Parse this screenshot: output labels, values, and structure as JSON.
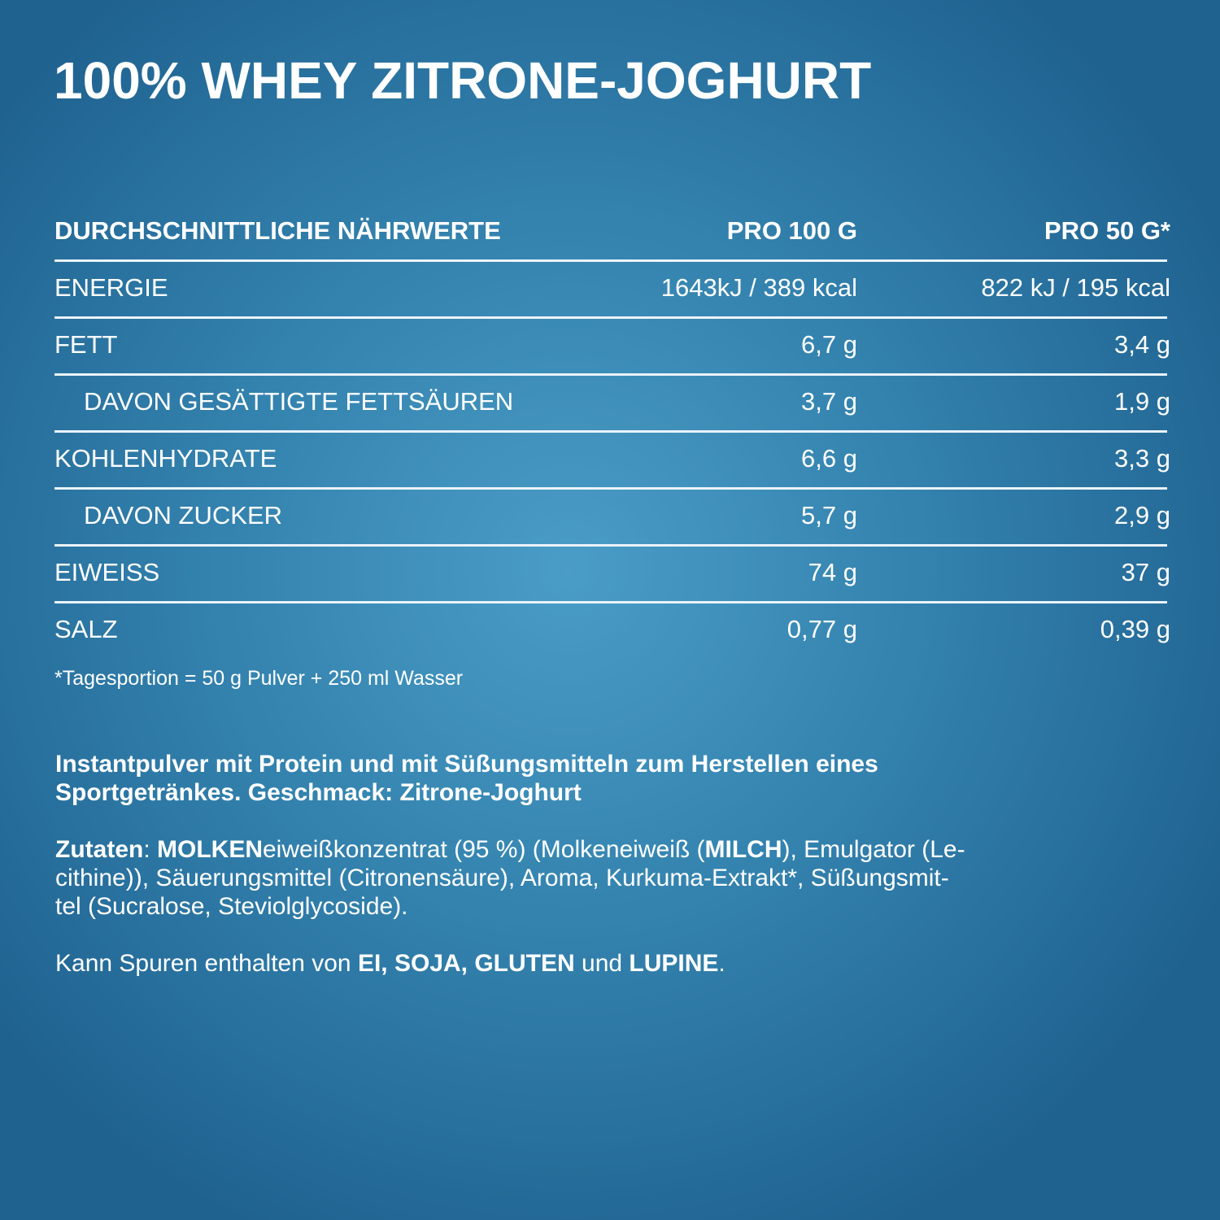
{
  "header": {
    "title": "100% WHEY ZITRONE-JOGHURT"
  },
  "table": {
    "columns": [
      "DURCHSCHNITTLICHE NÄHRWERTE",
      "PRO 100 G",
      "PRO 50 G*"
    ],
    "rows": [
      {
        "cells": [
          "ENERGIE",
          "1643kJ / 389 kcal",
          "822 kJ / 195 kcal"
        ],
        "indent": false
      },
      {
        "cells": [
          "FETT",
          "6,7 g",
          "3,4 g"
        ],
        "indent": false
      },
      {
        "cells": [
          "DAVON GESÄTTIGTE FETTSÄUREN",
          "3,7 g",
          "1,9 g"
        ],
        "indent": true
      },
      {
        "cells": [
          "KOHLENHYDRATE",
          "6,6 g",
          "3,3 g"
        ],
        "indent": false
      },
      {
        "cells": [
          "DAVON ZUCKER",
          "5,7 g",
          "2,9 g"
        ],
        "indent": true
      },
      {
        "cells": [
          "EIWEISS",
          "74 g",
          "37 g"
        ],
        "indent": false
      },
      {
        "cells": [
          "SALZ",
          "0,77 g",
          "0,39 g"
        ],
        "indent": false
      }
    ],
    "footnote": "*Tagesportion = 50 g Pulver + 250 ml Wasser"
  },
  "paragraphs": [
    {
      "lines": [
        [
          {
            "text": "Instantpulver mit Protein und mit Süßungsmitteln zum Herstellen eines",
            "bold": true
          }
        ],
        [
          {
            "text": "Sportgetränkes. Geschmack: Zitrone-Joghurt",
            "bold": true
          }
        ]
      ]
    },
    {
      "lines": [
        [
          {
            "text": "Zutaten",
            "bold": true
          },
          {
            "text": ": ",
            "bold": false
          },
          {
            "text": "MOLKEN",
            "bold": true
          },
          {
            "text": "eiweißkonzentrat (95 %) (Molkeneiweiß (",
            "bold": false
          },
          {
            "text": "MILCH",
            "bold": true
          },
          {
            "text": "), Emulgator (Le-",
            "bold": false
          }
        ],
        [
          {
            "text": "cithine)), Säuerungsmittel (Citronensäure), Aroma, Kurkuma-Extrakt*, Süßungsmit-",
            "bold": false
          }
        ],
        [
          {
            "text": "tel (Sucralose, Steviolglycoside).",
            "bold": false
          }
        ]
      ]
    },
    {
      "lines": [
        [
          {
            "text": "Kann Spuren enthalten von ",
            "bold": false
          },
          {
            "text": "EI, SOJA, GLUTEN",
            "bold": true
          },
          {
            "text": " und ",
            "bold": false
          },
          {
            "text": "LUPINE",
            "bold": true
          },
          {
            "text": ".",
            "bold": false
          }
        ]
      ]
    }
  ]
}
